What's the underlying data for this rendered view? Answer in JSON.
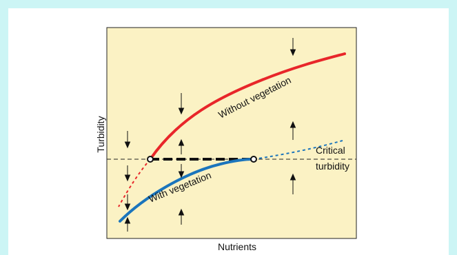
{
  "figure": {
    "y_axis_label": "Turbidity",
    "x_axis_label": "Nutrients",
    "curve_without_label": "Without vegetation",
    "curve_with_label": "With vegetation",
    "critical_label_line1": "Critical",
    "critical_label_line2": "turbidity"
  },
  "colors": {
    "background": "#ccf5f5",
    "plot_fill": "#fbf2c4",
    "without_vegetation": "#e8262a",
    "with_vegetation": "#1b75bc",
    "threshold": "#111111"
  }
}
